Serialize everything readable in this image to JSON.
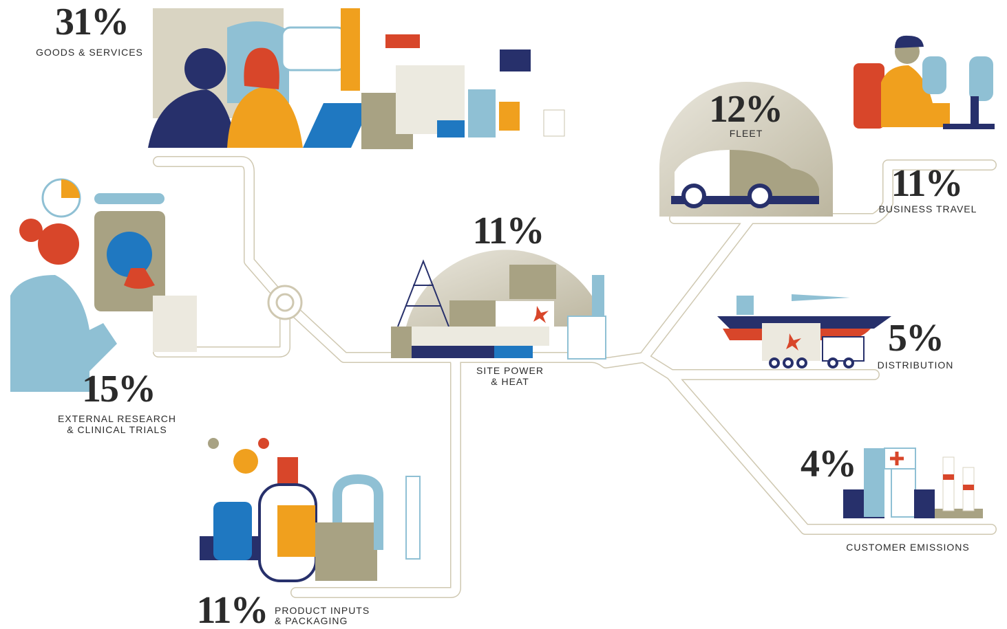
{
  "items": [
    {
      "percent": "31%",
      "label": [
        "GOODS & SERVICES"
      ]
    },
    {
      "percent": "15%",
      "label": [
        "EXTERNAL RESEARCH",
        "& CLINICAL TRIALS"
      ]
    },
    {
      "percent": "11%",
      "label": [
        "PRODUCT INPUTS",
        "& PACKAGING"
      ]
    },
    {
      "percent": "11%",
      "label": [
        "SITE POWER",
        "& HEAT"
      ]
    },
    {
      "percent": "12%",
      "label": [
        "FLEET"
      ]
    },
    {
      "percent": "11%",
      "label": [
        "BUSINESS TRAVEL"
      ]
    },
    {
      "percent": "5%",
      "label": [
        "DISTRIBUTION"
      ]
    },
    {
      "percent": "4%",
      "label": [
        "CUSTOMER EMISSIONS"
      ]
    }
  ]
}
